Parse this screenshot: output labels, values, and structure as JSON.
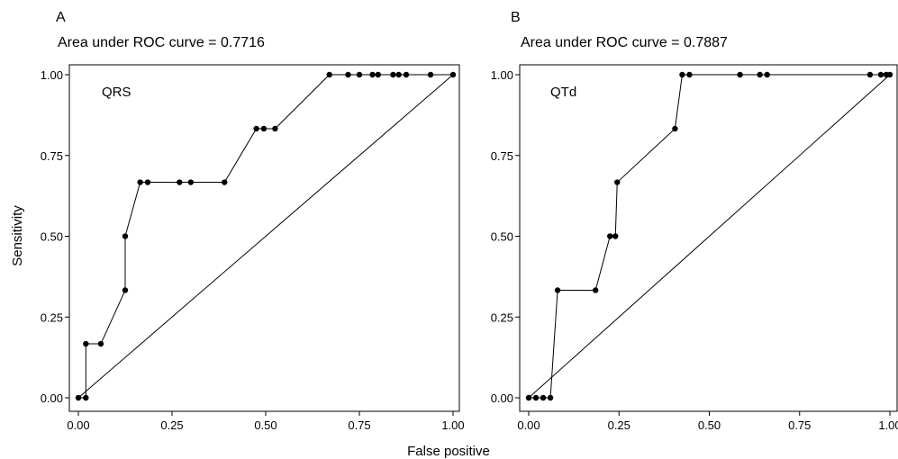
{
  "figure": {
    "ylabel": "Sensitivity",
    "xlabel": "False positive"
  },
  "chart_data": [
    {
      "type": "line",
      "panel": "A",
      "title": "Area under ROC curve = 0.7716",
      "series_label": "QRS",
      "xlabel": "False positive",
      "ylabel": "Sensitivity",
      "xlim": [
        0,
        1
      ],
      "ylim": [
        0,
        1
      ],
      "xticks": [
        "0.00",
        "0.25",
        "0.50",
        "0.75",
        "1.00"
      ],
      "yticks": [
        "0.00",
        "0.25",
        "0.50",
        "0.75",
        "1.00"
      ],
      "grid": false,
      "series": [
        {
          "x": [
            0.0,
            0.02,
            0.02,
            0.06,
            0.125,
            0.125,
            0.165,
            0.185,
            0.27,
            0.3,
            0.39,
            0.475,
            0.495,
            0.525,
            0.67,
            0.72,
            0.75,
            0.785,
            0.8,
            0.84,
            0.855,
            0.875,
            0.94,
            1.0
          ],
          "y": [
            0.0,
            0.0,
            0.167,
            0.167,
            0.333,
            0.5,
            0.667,
            0.667,
            0.667,
            0.667,
            0.667,
            0.833,
            0.833,
            0.833,
            1.0,
            1.0,
            1.0,
            1.0,
            1.0,
            1.0,
            1.0,
            1.0,
            1.0,
            1.0
          ]
        }
      ],
      "reference_line": {
        "x": [
          0,
          1
        ],
        "y": [
          0,
          1
        ]
      }
    },
    {
      "type": "line",
      "panel": "B",
      "title": "Area under ROC curve = 0.7887",
      "series_label": "QTd",
      "xlabel": "False positive",
      "ylabel": "Sensitivity",
      "xlim": [
        0,
        1
      ],
      "ylim": [
        0,
        1
      ],
      "xticks": [
        "0.00",
        "0.25",
        "0.50",
        "0.75",
        "1.00"
      ],
      "yticks": [
        "0.00",
        "0.25",
        "0.50",
        "0.75",
        "1.00"
      ],
      "grid": false,
      "series": [
        {
          "x": [
            0.0,
            0.02,
            0.04,
            0.06,
            0.08,
            0.185,
            0.225,
            0.24,
            0.245,
            0.405,
            0.425,
            0.445,
            0.585,
            0.64,
            0.66,
            0.945,
            0.975,
            0.99,
            1.0
          ],
          "y": [
            0.0,
            0.0,
            0.0,
            0.0,
            0.333,
            0.333,
            0.5,
            0.5,
            0.667,
            0.833,
            1.0,
            1.0,
            1.0,
            1.0,
            1.0,
            1.0,
            1.0,
            1.0,
            1.0
          ]
        }
      ],
      "reference_line": {
        "x": [
          0,
          1
        ],
        "y": [
          0,
          1
        ]
      }
    }
  ]
}
